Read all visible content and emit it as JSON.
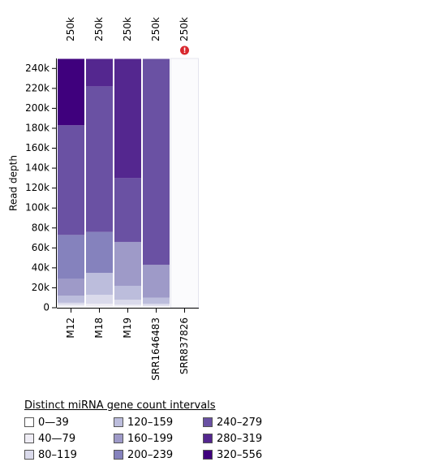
{
  "chart_data": {
    "type": "bar",
    "stacked": true,
    "ylabel": "Read depth",
    "ylim": [
      0,
      250000
    ],
    "y_ticks": [
      {
        "value": 0,
        "label": "0"
      },
      {
        "value": 20000,
        "label": "20k"
      },
      {
        "value": 40000,
        "label": "40k"
      },
      {
        "value": 60000,
        "label": "60k"
      },
      {
        "value": 80000,
        "label": "80k"
      },
      {
        "value": 100000,
        "label": "100k"
      },
      {
        "value": 120000,
        "label": "120k"
      },
      {
        "value": 140000,
        "label": "140k"
      },
      {
        "value": 160000,
        "label": "160k"
      },
      {
        "value": 180000,
        "label": "180k"
      },
      {
        "value": 200000,
        "label": "200k"
      },
      {
        "value": 220000,
        "label": "220k"
      },
      {
        "value": 240000,
        "label": "240k"
      }
    ],
    "categories": [
      "M12",
      "M18",
      "M19",
      "SRR1646483",
      "SRR837826"
    ],
    "top_labels": [
      "250k",
      "250k",
      "250k",
      "250k",
      "250k"
    ],
    "warning_flags": [
      false,
      false,
      false,
      false,
      true
    ],
    "series": [
      {
        "name": "0—39",
        "color": "#ffffff",
        "values": [
          1000,
          1000,
          1000,
          1000,
          0
        ]
      },
      {
        "name": "40—79",
        "color": "#efedf5",
        "values": [
          2000,
          3000,
          2000,
          1000,
          0
        ]
      },
      {
        "name": "80–119",
        "color": "#dadaeb",
        "values": [
          2000,
          9000,
          5000,
          2000,
          0
        ]
      },
      {
        "name": "120–159",
        "color": "#bcbddc",
        "values": [
          7000,
          22000,
          14000,
          6000,
          0
        ]
      },
      {
        "name": "160–199",
        "color": "#9e9ac8",
        "values": [
          17000,
          0,
          44000,
          33000,
          0
        ]
      },
      {
        "name": "200–239",
        "color": "#8582bd",
        "values": [
          44000,
          41000,
          0,
          0,
          0
        ]
      },
      {
        "name": "240–279",
        "color": "#6a51a3",
        "values": [
          110000,
          146000,
          64000,
          207000,
          0
        ]
      },
      {
        "name": "280–319",
        "color": "#54278f",
        "values": [
          0,
          28000,
          120000,
          0,
          0
        ]
      },
      {
        "name": "320–556",
        "color": "#3f007d",
        "values": [
          67000,
          0,
          0,
          0,
          0
        ]
      }
    ]
  },
  "legend": {
    "title": "Distinct miRNA gene count intervals",
    "items": [
      {
        "label": "0—39",
        "color": "#ffffff"
      },
      {
        "label": "120–159",
        "color": "#bcbddc"
      },
      {
        "label": "240–279",
        "color": "#6a51a3"
      },
      {
        "label": "40—79",
        "color": "#efedf5"
      },
      {
        "label": "160–199",
        "color": "#9e9ac8"
      },
      {
        "label": "280–319",
        "color": "#54278f"
      },
      {
        "label": "80–119",
        "color": "#dadaeb"
      },
      {
        "label": "200–239",
        "color": "#8582bd"
      },
      {
        "label": "320–556",
        "color": "#3f007d"
      }
    ]
  }
}
